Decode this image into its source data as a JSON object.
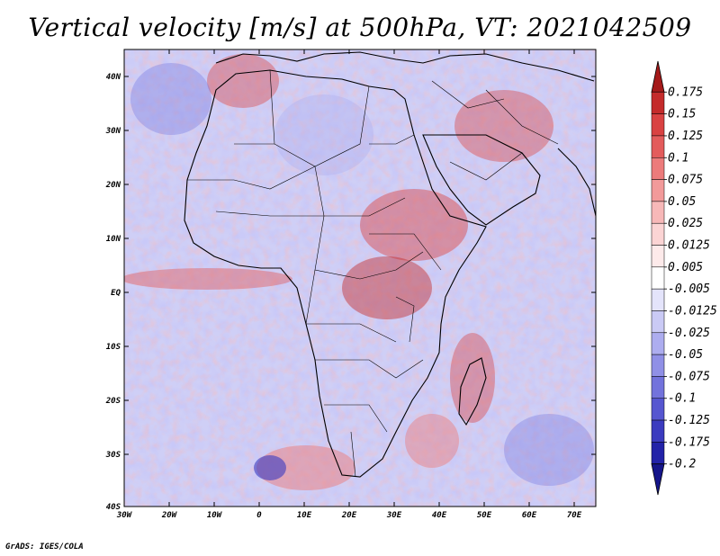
{
  "title": "Vertical velocity [m/s] at 500hPa, VT: 2021042509",
  "credit": "GrADS: IGES/COLA",
  "axes": {
    "lat_labels": [
      "40N",
      "30N",
      "20N",
      "10N",
      "EQ",
      "10S",
      "20S",
      "30S",
      "40S"
    ],
    "lon_labels": [
      "30W",
      "20W",
      "10W",
      "0",
      "10E",
      "20E",
      "30E",
      "40E",
      "50E",
      "60E",
      "70E"
    ]
  },
  "colorbar": {
    "labels": [
      "0.175",
      "0.15",
      "0.125",
      "0.1",
      "0.075",
      "0.05",
      "0.025",
      "0.0125",
      "0.005",
      "-0.005",
      "-0.0125",
      "-0.025",
      "-0.05",
      "-0.075",
      "-0.1",
      "-0.125",
      "-0.175",
      "-0.2"
    ],
    "colors": [
      "#a51a1a",
      "#c42b2b",
      "#d94242",
      "#e35c5c",
      "#ec7b7b",
      "#f29a9a",
      "#f7b8b8",
      "#fbd4d4",
      "#fdeaea",
      "#ffffff",
      "#e4e4fb",
      "#cacaf5",
      "#adadef",
      "#9090e6",
      "#7373dc",
      "#5656d0",
      "#3b3bbf",
      "#2222a8",
      "#15158a"
    ]
  },
  "field_colors": {
    "red": "#d94242",
    "pink": "#f29a9a",
    "blue": "#6f6fdd",
    "lightblue": "#b7b7f2",
    "white": "#ffffff"
  }
}
